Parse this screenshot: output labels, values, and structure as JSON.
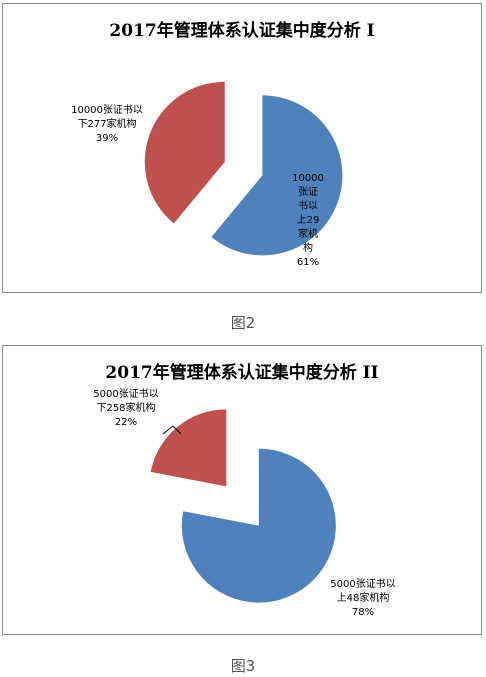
{
  "chart_data": [
    {
      "type": "pie",
      "title": "2017年管理体系认证集中度分析 I",
      "caption": "图2",
      "slices": [
        {
          "label": [
            "10000",
            "张证",
            "书以",
            "上29",
            "家机",
            "构"
          ],
          "percent_label": "61%",
          "value": 61,
          "color": "#4f81bd"
        },
        {
          "label": [
            "10000张证书以",
            "下277家机构"
          ],
          "percent_label": "39%",
          "value": 39,
          "color": "#c0504d"
        }
      ]
    },
    {
      "type": "pie",
      "title": "2017年管理体系认证集中度分析 II",
      "caption": "图3",
      "slices": [
        {
          "label": [
            "5000张证书以",
            "上48家机构"
          ],
          "percent_label": "78%",
          "value": 78,
          "color": "#4f81bd"
        },
        {
          "label": [
            "5000张证书以",
            "下258家机构"
          ],
          "percent_label": "22%",
          "value": 22,
          "color": "#c0504d"
        }
      ]
    }
  ]
}
